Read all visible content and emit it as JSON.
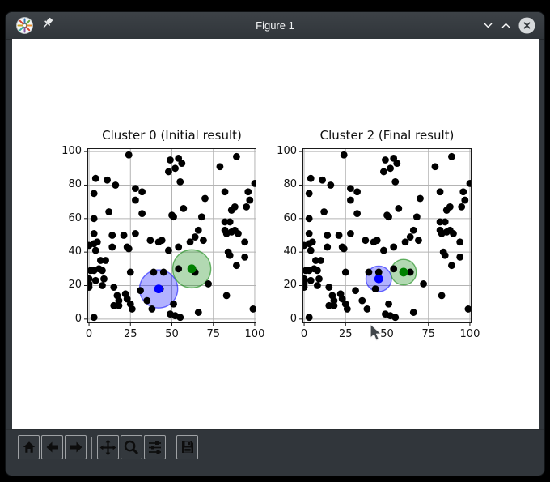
{
  "window": {
    "title": "Figure 1",
    "app_icon": "matplotlib-logo-icon",
    "pin_icon": "pushpin-icon",
    "controls": {
      "minimize": "chevron-down-icon",
      "maximize": "chevron-up-icon",
      "close": "close-x-circle-icon"
    }
  },
  "cursor_icon": "arrow-pointer",
  "colors": {
    "titlebar_bg": "#31363b",
    "toolbar_bg": "#31363b",
    "canvas_bg": "#ffffff",
    "grid": "#b4b4b4",
    "spine": "#1a1a1a",
    "point": "#000000",
    "cluster_blue": "#0000ff",
    "cluster_green": "#008000"
  },
  "toolbar": {
    "buttons": [
      {
        "name": "home",
        "icon": "home-icon"
      },
      {
        "name": "back",
        "icon": "arrow-left-icon"
      },
      {
        "name": "forward",
        "icon": "arrow-right-icon"
      },
      {
        "name": "pan",
        "icon": "move-arrows-icon"
      },
      {
        "name": "zoom",
        "icon": "magnifier-icon"
      },
      {
        "name": "configure-subplots",
        "icon": "sliders-icon"
      },
      {
        "name": "save",
        "icon": "floppy-disk-icon"
      }
    ]
  },
  "chart_data": [
    {
      "type": "scatter",
      "title": "Cluster 0 (Initial result)",
      "xlabel": "",
      "ylabel": "",
      "xlim": [
        -1,
        101
      ],
      "ylim": [
        -2.5,
        102
      ],
      "xticks": [
        0,
        25,
        50,
        75,
        100
      ],
      "yticks": [
        0,
        20,
        40,
        60,
        80,
        100
      ],
      "grid": true,
      "series": [
        {
          "name": "samples",
          "color": "#000000",
          "points": [
            [
              24,
              98
            ],
            [
              49,
              95
            ],
            [
              54,
              96
            ],
            [
              56,
              93
            ],
            [
              48,
              88
            ],
            [
              52,
              90
            ],
            [
              79,
              91
            ],
            [
              89,
              97
            ],
            [
              4,
              84
            ],
            [
              11,
              83
            ],
            [
              16,
              80
            ],
            [
              55,
              82
            ],
            [
              100,
              81
            ],
            [
              28,
              78
            ],
            [
              32,
              76
            ],
            [
              3,
              75
            ],
            [
              28,
              71
            ],
            [
              82,
              76
            ],
            [
              70,
              72
            ],
            [
              96,
              76
            ],
            [
              97,
              71
            ],
            [
              12,
              64
            ],
            [
              3,
              60
            ],
            [
              32,
              63
            ],
            [
              50,
              62
            ],
            [
              57,
              66
            ],
            [
              51,
              61
            ],
            [
              68,
              61
            ],
            [
              86,
              65
            ],
            [
              88,
              67
            ],
            [
              95,
              67
            ],
            [
              82,
              58
            ],
            [
              85,
              58
            ],
            [
              66,
              53
            ],
            [
              82,
              53
            ],
            [
              88,
              53
            ],
            [
              3,
              51
            ],
            [
              14,
              50
            ],
            [
              21,
              50
            ],
            [
              28,
              51
            ],
            [
              83,
              51
            ],
            [
              86,
              52
            ],
            [
              90,
              51
            ],
            [
              37,
              47
            ],
            [
              42,
              46
            ],
            [
              44,
              47
            ],
            [
              0,
              44
            ],
            [
              3,
              45
            ],
            [
              5,
              46
            ],
            [
              4,
              41
            ],
            [
              14,
              43
            ],
            [
              23,
              43
            ],
            [
              24,
              42
            ],
            [
              48,
              41
            ],
            [
              54,
              43
            ],
            [
              61,
              46
            ],
            [
              64,
              49
            ],
            [
              69,
              47
            ],
            [
              94,
              46
            ],
            [
              7,
              35
            ],
            [
              10,
              35
            ],
            [
              84,
              40
            ],
            [
              85,
              38
            ],
            [
              94,
              37
            ],
            [
              89,
              32
            ],
            [
              1,
              29
            ],
            [
              3,
              29
            ],
            [
              6,
              30
            ],
            [
              8,
              29
            ],
            [
              25,
              28
            ],
            [
              39,
              28
            ],
            [
              45,
              28
            ],
            [
              54,
              30
            ],
            [
              64,
              28
            ],
            [
              0,
              24
            ],
            [
              4,
              23
            ],
            [
              9,
              24
            ],
            [
              0,
              21
            ],
            [
              0,
              19
            ],
            [
              8,
              20
            ],
            [
              15,
              19
            ],
            [
              31,
              17
            ],
            [
              43,
              18
            ],
            [
              72,
              21
            ],
            [
              17,
              14
            ],
            [
              22,
              15
            ],
            [
              23,
              12
            ],
            [
              18,
              11
            ],
            [
              15,
              8
            ],
            [
              18,
              8
            ],
            [
              25,
              9
            ],
            [
              26,
              6
            ],
            [
              35,
              11
            ],
            [
              38,
              6
            ],
            [
              83,
              14
            ],
            [
              51,
              9
            ],
            [
              66,
              4
            ],
            [
              3,
              1
            ],
            [
              49,
              3
            ],
            [
              52,
              2
            ],
            [
              55,
              1
            ],
            [
              99,
              6
            ]
          ]
        }
      ],
      "clusters": [
        {
          "name": "blue-centroid",
          "center": [
            42,
            18
          ],
          "radius": 11.5,
          "color": "#0000ff",
          "fill_opacity": 0.3
        },
        {
          "name": "green-centroid",
          "center": [
            62,
            30
          ],
          "radius": 11.5,
          "color": "#008000",
          "fill_opacity": 0.3
        }
      ]
    },
    {
      "type": "scatter",
      "title": "Cluster 2 (Final result)",
      "xlabel": "",
      "ylabel": "",
      "xlim": [
        -1,
        101
      ],
      "ylim": [
        -2.5,
        102
      ],
      "xticks": [
        0,
        25,
        50,
        75,
        100
      ],
      "yticks": [
        0,
        20,
        40,
        60,
        80,
        100
      ],
      "grid": true,
      "series": [
        {
          "name": "samples",
          "color": "#000000",
          "points": [
            [
              24,
              98
            ],
            [
              49,
              95
            ],
            [
              54,
              96
            ],
            [
              56,
              93
            ],
            [
              48,
              88
            ],
            [
              52,
              90
            ],
            [
              79,
              91
            ],
            [
              89,
              97
            ],
            [
              4,
              84
            ],
            [
              11,
              83
            ],
            [
              16,
              80
            ],
            [
              55,
              82
            ],
            [
              100,
              81
            ],
            [
              28,
              78
            ],
            [
              32,
              76
            ],
            [
              3,
              75
            ],
            [
              28,
              71
            ],
            [
              82,
              76
            ],
            [
              70,
              72
            ],
            [
              96,
              76
            ],
            [
              97,
              71
            ],
            [
              12,
              64
            ],
            [
              3,
              60
            ],
            [
              32,
              63
            ],
            [
              50,
              62
            ],
            [
              57,
              66
            ],
            [
              51,
              61
            ],
            [
              68,
              61
            ],
            [
              86,
              65
            ],
            [
              88,
              67
            ],
            [
              95,
              67
            ],
            [
              82,
              58
            ],
            [
              85,
              58
            ],
            [
              66,
              53
            ],
            [
              82,
              53
            ],
            [
              88,
              53
            ],
            [
              3,
              51
            ],
            [
              14,
              50
            ],
            [
              21,
              50
            ],
            [
              28,
              51
            ],
            [
              83,
              51
            ],
            [
              86,
              52
            ],
            [
              90,
              51
            ],
            [
              37,
              47
            ],
            [
              42,
              46
            ],
            [
              44,
              47
            ],
            [
              0,
              44
            ],
            [
              3,
              45
            ],
            [
              5,
              46
            ],
            [
              4,
              41
            ],
            [
              14,
              43
            ],
            [
              23,
              43
            ],
            [
              24,
              42
            ],
            [
              48,
              41
            ],
            [
              54,
              43
            ],
            [
              61,
              46
            ],
            [
              64,
              49
            ],
            [
              69,
              47
            ],
            [
              94,
              46
            ],
            [
              7,
              35
            ],
            [
              10,
              35
            ],
            [
              84,
              40
            ],
            [
              85,
              38
            ],
            [
              94,
              37
            ],
            [
              89,
              32
            ],
            [
              1,
              29
            ],
            [
              3,
              29
            ],
            [
              6,
              30
            ],
            [
              8,
              29
            ],
            [
              25,
              28
            ],
            [
              39,
              28
            ],
            [
              45,
              28
            ],
            [
              54,
              30
            ],
            [
              64,
              28
            ],
            [
              0,
              24
            ],
            [
              4,
              23
            ],
            [
              9,
              24
            ],
            [
              0,
              21
            ],
            [
              0,
              19
            ],
            [
              8,
              20
            ],
            [
              15,
              19
            ],
            [
              31,
              17
            ],
            [
              43,
              18
            ],
            [
              72,
              21
            ],
            [
              17,
              14
            ],
            [
              22,
              15
            ],
            [
              23,
              12
            ],
            [
              18,
              11
            ],
            [
              15,
              8
            ],
            [
              18,
              8
            ],
            [
              25,
              9
            ],
            [
              26,
              6
            ],
            [
              35,
              11
            ],
            [
              38,
              6
            ],
            [
              83,
              14
            ],
            [
              51,
              9
            ],
            [
              66,
              4
            ],
            [
              3,
              1
            ],
            [
              49,
              3
            ],
            [
              52,
              2
            ],
            [
              55,
              1
            ],
            [
              99,
              6
            ]
          ]
        }
      ],
      "clusters": [
        {
          "name": "blue-centroid",
          "center": [
            45,
            24
          ],
          "radius": 7.7,
          "color": "#0000ff",
          "fill_opacity": 0.3
        },
        {
          "name": "green-centroid",
          "center": [
            60,
            28
          ],
          "radius": 7.7,
          "color": "#008000",
          "fill_opacity": 0.3
        }
      ]
    }
  ]
}
